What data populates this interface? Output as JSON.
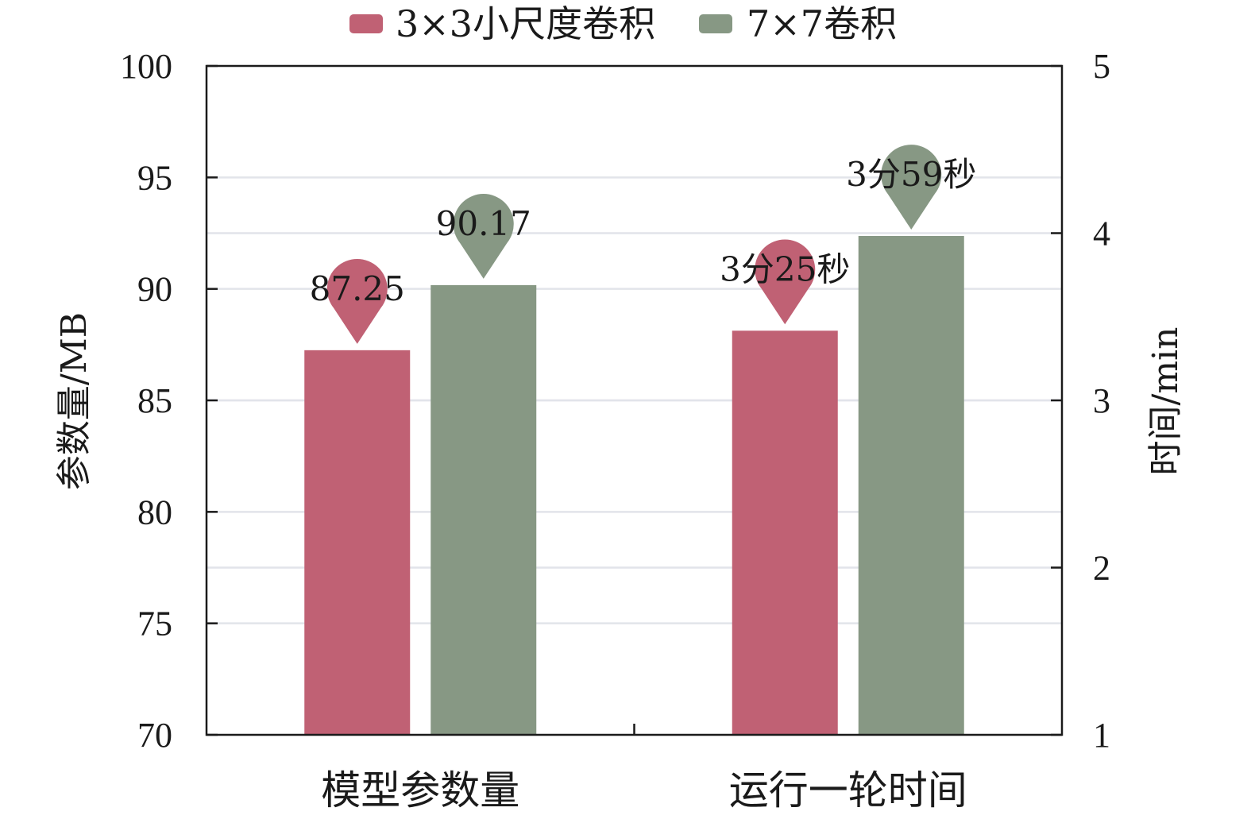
{
  "chart_data": {
    "type": "bar",
    "title": "",
    "legend_position": "top",
    "grid": true,
    "categories": [
      "模型参数量",
      "运行一轮时间"
    ],
    "left_axis": {
      "label": "参数量/MB",
      "range": [
        70,
        100
      ],
      "ticks": [
        70,
        75,
        80,
        85,
        90,
        95,
        100
      ]
    },
    "right_axis": {
      "label": "时间/min",
      "range": [
        1,
        5
      ],
      "ticks": [
        1,
        2,
        3,
        4,
        5
      ]
    },
    "series": [
      {
        "name": "3×3小尺度卷积",
        "color": "#c06174",
        "points": [
          {
            "category": "模型参数量",
            "value": 87.25,
            "axis": "left",
            "label": "87.25"
          },
          {
            "category": "运行一轮时间",
            "value": 3.4167,
            "axis": "right",
            "label": "3分25秒"
          }
        ]
      },
      {
        "name": "7×7卷积",
        "color": "#879884",
        "points": [
          {
            "category": "模型参数量",
            "value": 90.17,
            "axis": "left",
            "label": "90.17"
          },
          {
            "category": "运行一轮时间",
            "value": 3.9833,
            "axis": "right",
            "label": "3分59秒"
          }
        ]
      }
    ]
  }
}
